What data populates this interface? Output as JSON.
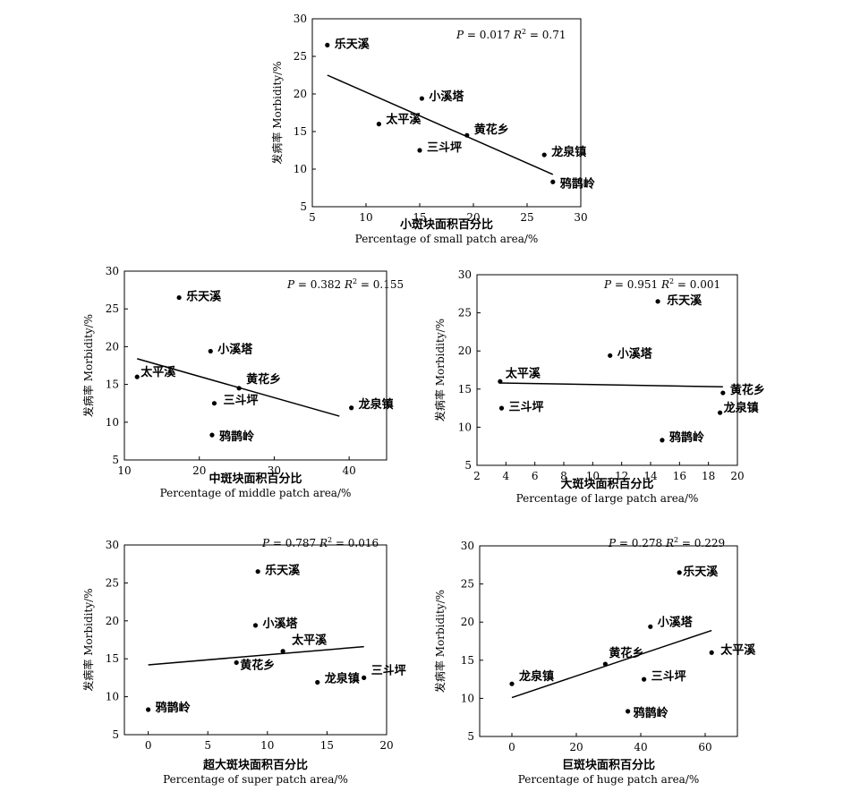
{
  "chart_data": [
    {
      "type": "scatter",
      "id": "small",
      "stat_p_label": "P",
      "stat_p_value": "= 0.017",
      "stat_r2_label": "R",
      "stat_r2_value": "= 0.71",
      "ylabel": "发病率 Morbidity/%",
      "xlabel_cn": "小斑块面积百分比",
      "xlabel_en": "Percentage of small patch area/%",
      "xlim": [
        5,
        30
      ],
      "ylim": [
        5,
        30
      ],
      "xticks": [
        5,
        10,
        15,
        20,
        25,
        30
      ],
      "yticks": [
        5,
        10,
        15,
        20,
        25,
        30
      ],
      "points": [
        {
          "label": "乐天溪",
          "x": 6.4,
          "y": 26.5
        },
        {
          "label": "小溪塔",
          "x": 15.2,
          "y": 19.4
        },
        {
          "label": "太平溪",
          "x": 11.2,
          "y": 16.0
        },
        {
          "label": "黄花乡",
          "x": 19.4,
          "y": 14.5
        },
        {
          "label": "三斗坪",
          "x": 15.0,
          "y": 12.5
        },
        {
          "label": "龙泉镇",
          "x": 26.6,
          "y": 11.9
        },
        {
          "label": "鸦鹊岭",
          "x": 27.4,
          "y": 8.3
        }
      ],
      "fit": [
        [
          6.4,
          22.5
        ],
        [
          27.4,
          9.3
        ]
      ]
    },
    {
      "type": "scatter",
      "id": "middle",
      "stat_p_label": "P",
      "stat_p_value": "= 0.382",
      "stat_r2_label": "R",
      "stat_r2_value": "= 0.155",
      "ylabel": "发病率 Morbidity/%",
      "xlabel_cn": "中斑块面积百分比",
      "xlabel_en": "Percentage of middle patch area/%",
      "xlim": [
        10,
        45
      ],
      "ylim": [
        5,
        30
      ],
      "xticks": [
        10,
        20,
        30,
        40
      ],
      "yticks": [
        5,
        10,
        15,
        20,
        25,
        30
      ],
      "points": [
        {
          "label": "乐天溪",
          "x": 17.3,
          "y": 26.5
        },
        {
          "label": "小溪塔",
          "x": 21.5,
          "y": 19.4
        },
        {
          "label": "太平溪",
          "x": 11.7,
          "y": 16.0
        },
        {
          "label": "黄花乡",
          "x": 25.3,
          "y": 14.5
        },
        {
          "label": "三斗坪",
          "x": 22.0,
          "y": 12.5
        },
        {
          "label": "龙泉镇",
          "x": 40.3,
          "y": 11.9
        },
        {
          "label": "鸦鹊岭",
          "x": 21.7,
          "y": 8.3
        }
      ],
      "fit": [
        [
          11.7,
          18.4
        ],
        [
          38.7,
          10.8
        ]
      ]
    },
    {
      "type": "scatter",
      "id": "large",
      "stat_p_label": "P",
      "stat_p_value": "= 0.951",
      "stat_r2_label": "R",
      "stat_r2_value": "= 0.001",
      "ylabel": "发病率 Morbidity/%",
      "xlabel_cn": "大斑块面积百分比",
      "xlabel_en": "Percentage of large patch area/%",
      "xlim": [
        2,
        20
      ],
      "ylim": [
        5,
        30
      ],
      "xticks": [
        2,
        4,
        6,
        8,
        10,
        12,
        14,
        16,
        18,
        20
      ],
      "yticks": [
        5,
        10,
        15,
        20,
        25,
        30
      ],
      "points": [
        {
          "label": "乐天溪",
          "x": 14.5,
          "y": 26.5
        },
        {
          "label": "小溪塔",
          "x": 11.2,
          "y": 19.4
        },
        {
          "label": "太平溪",
          "x": 3.6,
          "y": 16.0
        },
        {
          "label": "黄花乡",
          "x": 19.0,
          "y": 14.5
        },
        {
          "label": "三斗坪",
          "x": 3.7,
          "y": 12.5
        },
        {
          "label": "龙泉镇",
          "x": 18.8,
          "y": 11.9
        },
        {
          "label": "鸦鹊岭",
          "x": 14.8,
          "y": 8.3
        }
      ],
      "fit": [
        [
          3.6,
          15.8
        ],
        [
          19.0,
          15.3
        ]
      ]
    },
    {
      "type": "scatter",
      "id": "super",
      "stat_p_label": "P",
      "stat_p_value": "= 0.787",
      "stat_r2_label": "R",
      "stat_r2_value": "= 0.016",
      "ylabel": "发病率 Morbidity/%",
      "xlabel_cn": "超大斑块面积百分比",
      "xlabel_en": "Percentage of super patch area/%",
      "xlim": [
        -2,
        20
      ],
      "ylim": [
        5,
        30
      ],
      "xticks": [
        0,
        5,
        10,
        15,
        20
      ],
      "yticks": [
        5,
        10,
        15,
        20,
        25,
        30
      ],
      "points": [
        {
          "label": "乐天溪",
          "x": 9.2,
          "y": 26.5
        },
        {
          "label": "小溪塔",
          "x": 9.0,
          "y": 19.4
        },
        {
          "label": "太平溪",
          "x": 11.3,
          "y": 16.0
        },
        {
          "label": "黄花乡",
          "x": 7.4,
          "y": 14.5
        },
        {
          "label": "龙泉镇",
          "x": 14.2,
          "y": 11.9
        },
        {
          "label": "三斗坪",
          "x": 18.1,
          "y": 12.5
        },
        {
          "label": "鸦鹊岭",
          "x": 0.0,
          "y": 8.3
        }
      ],
      "fit": [
        [
          0.0,
          14.2
        ],
        [
          18.1,
          16.6
        ]
      ]
    },
    {
      "type": "scatter",
      "id": "huge",
      "stat_p_label": "P",
      "stat_p_value": "= 0.278",
      "stat_r2_label": "R",
      "stat_r2_value": "= 0.229",
      "ylabel": "发病率 Morbidity/%",
      "xlabel_cn": "巨斑块面积百分比",
      "xlabel_en": "Percentage of huge patch area/%",
      "xlim": [
        -10,
        70
      ],
      "ylim": [
        5,
        30
      ],
      "xticks": [
        0,
        20,
        40,
        60
      ],
      "yticks": [
        5,
        10,
        15,
        20,
        25,
        30
      ],
      "points": [
        {
          "label": "乐天溪",
          "x": 52.0,
          "y": 26.5
        },
        {
          "label": "小溪塔",
          "x": 43.0,
          "y": 19.4
        },
        {
          "label": "太平溪",
          "x": 62.0,
          "y": 16.0
        },
        {
          "label": "黄花乡",
          "x": 29.0,
          "y": 14.5
        },
        {
          "label": "龙泉镇",
          "x": 0.0,
          "y": 11.9
        },
        {
          "label": "三斗坪",
          "x": 41.0,
          "y": 12.5
        },
        {
          "label": "鸦鹊岭",
          "x": 36.0,
          "y": 8.3
        }
      ],
      "fit": [
        [
          0.0,
          10.1
        ],
        [
          62.0,
          18.9
        ]
      ]
    }
  ]
}
